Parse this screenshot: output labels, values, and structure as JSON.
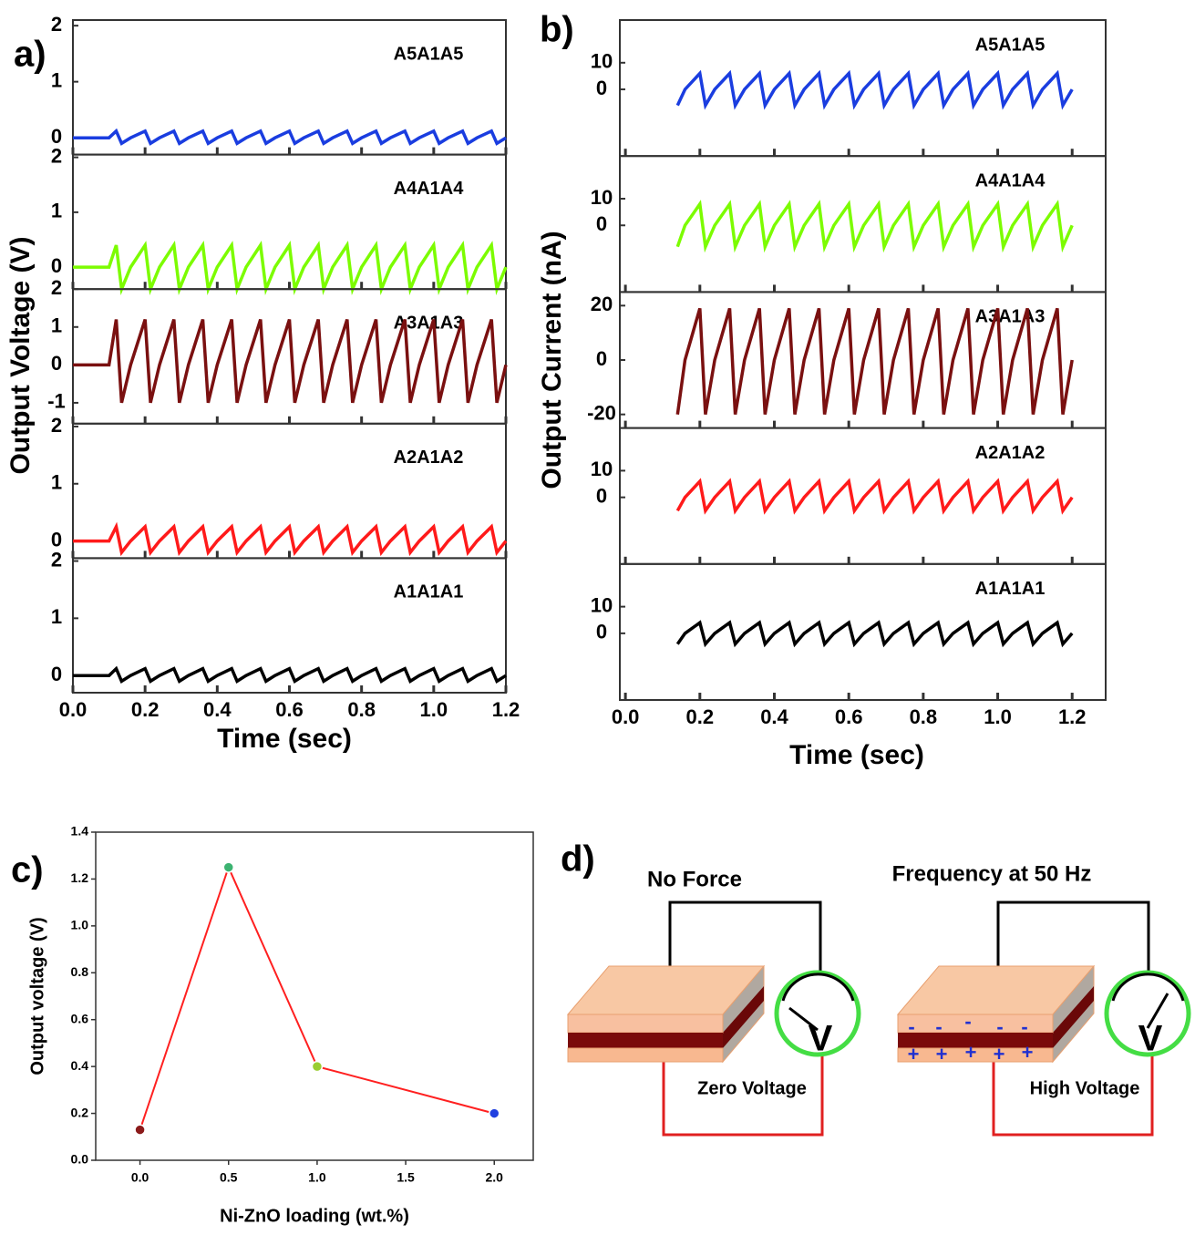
{
  "chart_data": [
    {
      "type": "line",
      "panel_label": "a)",
      "x_label": "Time (sec)",
      "y_label": "Output Voltage (V)",
      "xlim": [
        0,
        1.2
      ],
      "xticks": [
        {
          "value": 0,
          "label": "0.0"
        },
        0.2,
        0.4,
        0.6,
        0.8,
        {
          "value": 1,
          "label": "1.0"
        },
        1.2
      ],
      "x": [
        0,
        0.1,
        0.12,
        0.135,
        0.16,
        0.2,
        0.215,
        0.24,
        0.28,
        0.295,
        0.32,
        0.36,
        0.375,
        0.4,
        0.44,
        0.455,
        0.48,
        0.52,
        0.535,
        0.56,
        0.6,
        0.615,
        0.64,
        0.68,
        0.695,
        0.72,
        0.76,
        0.775,
        0.8,
        0.84,
        0.855,
        0.88,
        0.92,
        0.935,
        0.96,
        1.0,
        1.015,
        1.04,
        1.08,
        1.095,
        1.12,
        1.16,
        1.175,
        1.2
      ],
      "series": [
        {
          "name": "A5A1A5",
          "color": "#1a3de0",
          "ylim": [
            -0.3,
            2.1
          ],
          "yticks": [
            0,
            1,
            2
          ],
          "values": [
            0,
            0,
            0.12,
            -0.1,
            0,
            0.12,
            -0.1,
            0,
            0.12,
            -0.1,
            0,
            0.12,
            -0.1,
            0,
            0.12,
            -0.1,
            0,
            0.12,
            -0.1,
            0,
            0.12,
            -0.1,
            0,
            0.12,
            -0.1,
            0,
            0.12,
            -0.1,
            0,
            0.12,
            -0.1,
            0,
            0.12,
            -0.1,
            0,
            0.12,
            -0.1,
            0,
            0.12,
            -0.1,
            0,
            0.12,
            -0.1,
            0
          ]
        },
        {
          "name": "A4A1A4",
          "color": "#7cfc00",
          "ylim": [
            -0.4,
            2.05
          ],
          "yticks": [
            0,
            1,
            2
          ],
          "values": [
            0,
            0,
            0.4,
            -0.4,
            0,
            0.4,
            -0.4,
            0,
            0.4,
            -0.4,
            0,
            0.4,
            -0.4,
            0,
            0.4,
            -0.4,
            0,
            0.4,
            -0.4,
            0,
            0.4,
            -0.4,
            0,
            0.4,
            -0.4,
            0,
            0.4,
            -0.4,
            0,
            0.4,
            -0.4,
            0,
            0.4,
            -0.4,
            0,
            0.4,
            -0.4,
            0,
            0.4,
            -0.4,
            0,
            0.4,
            -0.4,
            0
          ]
        },
        {
          "name": "A3A1A3",
          "color": "#7a1010",
          "ylim": [
            -1.55,
            2.0
          ],
          "yticks": [
            -1,
            0,
            1,
            2
          ],
          "values": [
            0,
            0,
            1.2,
            -1,
            0,
            1.2,
            -1,
            0,
            1.2,
            -1,
            0,
            1.2,
            -1,
            0,
            1.2,
            -1,
            0,
            1.2,
            -1,
            0,
            1.2,
            -1,
            0,
            1.2,
            -1,
            0,
            1.2,
            -1,
            0,
            1.2,
            -1,
            0,
            1.2,
            -1,
            0,
            1.2,
            -1,
            0,
            1.2,
            -1,
            0,
            1.2,
            -1,
            0
          ]
        },
        {
          "name": "A2A1A2",
          "color": "#ff1a1a",
          "ylim": [
            -0.3,
            2.05
          ],
          "yticks": [
            0,
            1,
            2
          ],
          "values": [
            0,
            0,
            0.25,
            -0.2,
            0,
            0.25,
            -0.2,
            0,
            0.25,
            -0.2,
            0,
            0.25,
            -0.2,
            0,
            0.25,
            -0.2,
            0,
            0.25,
            -0.2,
            0,
            0.25,
            -0.2,
            0,
            0.25,
            -0.2,
            0,
            0.25,
            -0.2,
            0,
            0.25,
            -0.2,
            0,
            0.25,
            -0.2,
            0,
            0.25,
            -0.2,
            0,
            0.25,
            -0.2,
            0,
            0.25,
            -0.2,
            0
          ]
        },
        {
          "name": "A1A1A1",
          "color": "#000000",
          "ylim": [
            -0.3,
            2.05
          ],
          "yticks": [
            0,
            1,
            2
          ],
          "values": [
            0,
            0,
            0.12,
            -0.1,
            0,
            0.12,
            -0.1,
            0,
            0.12,
            -0.1,
            0,
            0.12,
            -0.1,
            0,
            0.12,
            -0.1,
            0,
            0.12,
            -0.1,
            0,
            0.12,
            -0.1,
            0,
            0.12,
            -0.1,
            0,
            0.12,
            -0.1,
            0,
            0.12,
            -0.1,
            0,
            0.12,
            -0.1,
            0,
            0.12,
            -0.1,
            0,
            0.12,
            -0.1,
            0,
            0.12,
            -0.1,
            0
          ]
        }
      ]
    },
    {
      "type": "line",
      "panel_label": "b)",
      "x_label": "Time (sec)",
      "y_label": "Output Current (nA)",
      "xlim": [
        -0.015,
        1.29
      ],
      "xticks": [
        {
          "value": 0,
          "label": "0.0"
        },
        0.2,
        0.4,
        0.6,
        0.8,
        {
          "value": 1,
          "label": "1.0"
        },
        1.2
      ],
      "x": [
        0.14,
        0.16,
        0.2,
        0.215,
        0.24,
        0.28,
        0.295,
        0.32,
        0.36,
        0.375,
        0.4,
        0.44,
        0.455,
        0.48,
        0.52,
        0.535,
        0.56,
        0.6,
        0.615,
        0.64,
        0.68,
        0.695,
        0.72,
        0.76,
        0.775,
        0.8,
        0.84,
        0.855,
        0.88,
        0.92,
        0.935,
        0.96,
        1.0,
        1.015,
        1.04,
        1.08,
        1.095,
        1.12,
        1.16,
        1.175,
        1.2
      ],
      "series": [
        {
          "name": "A5A1A5",
          "color": "#1a3de0",
          "ylim": [
            -25,
            26
          ],
          "yticks": [
            0,
            10
          ],
          "values": [
            -6,
            0,
            6,
            -6,
            0,
            6,
            -6,
            0,
            6,
            -6,
            0,
            6,
            -6,
            0,
            6,
            -6,
            0,
            6,
            -6,
            0,
            6,
            -6,
            0,
            6,
            -6,
            0,
            6,
            -6,
            0,
            6,
            -6,
            0,
            6,
            -6,
            0,
            6,
            -6,
            0,
            6,
            -6,
            0
          ]
        },
        {
          "name": "A4A1A4",
          "color": "#7cfc00",
          "ylim": [
            -25,
            26
          ],
          "yticks": [
            0,
            10
          ],
          "values": [
            -8,
            0,
            8,
            -8,
            0,
            8,
            -8,
            0,
            8,
            -8,
            0,
            8,
            -8,
            0,
            8,
            -8,
            0,
            8,
            -8,
            0,
            8,
            -8,
            0,
            8,
            -8,
            0,
            8,
            -8,
            0,
            8,
            -8,
            0,
            8,
            -8,
            0,
            8,
            -8,
            0,
            8,
            -8,
            0
          ]
        },
        {
          "name": "A3A1A3",
          "color": "#7a1010",
          "ylim": [
            -25,
            25
          ],
          "yticks": [
            -20,
            0,
            20
          ],
          "values": [
            -20,
            0,
            19,
            -20,
            0,
            19,
            -20,
            0,
            19,
            -20,
            0,
            19,
            -20,
            0,
            19,
            -20,
            0,
            19,
            -20,
            0,
            19,
            -20,
            0,
            19,
            -20,
            0,
            19,
            -20,
            0,
            19,
            -20,
            0,
            19,
            -20,
            0,
            19,
            -20,
            0,
            19,
            -20,
            0
          ]
        },
        {
          "name": "A2A1A2",
          "color": "#ff1a1a",
          "ylim": [
            -25,
            26
          ],
          "yticks": [
            0,
            10
          ],
          "values": [
            -5,
            0,
            6,
            -5,
            0,
            6,
            -5,
            0,
            6,
            -5,
            0,
            6,
            -5,
            0,
            6,
            -5,
            0,
            6,
            -5,
            0,
            6,
            -5,
            0,
            6,
            -5,
            0,
            6,
            -5,
            0,
            6,
            -5,
            0,
            6,
            -5,
            0,
            6,
            -5,
            0,
            6,
            -5,
            0
          ]
        },
        {
          "name": "A1A1A1",
          "color": "#000000",
          "ylim": [
            -25,
            26
          ],
          "yticks": [
            0,
            10
          ],
          "values": [
            -4,
            0,
            4,
            -4,
            0,
            4,
            -4,
            0,
            4,
            -4,
            0,
            4,
            -4,
            0,
            4,
            -4,
            0,
            4,
            -4,
            0,
            4,
            -4,
            0,
            4,
            -4,
            0,
            4,
            -4,
            0,
            4,
            -4,
            0,
            4,
            -4,
            0,
            4,
            -4,
            0,
            4,
            -4,
            0
          ]
        }
      ]
    },
    {
      "type": "line",
      "panel_label": "c)",
      "x_label": "Ni-ZnO loading (wt.%)",
      "y_label": "Output voltage (V)",
      "xlim": [
        -0.25,
        2.22
      ],
      "ylim": [
        0,
        1.4
      ],
      "xticks": [
        {
          "value": 0,
          "label": "0.0"
        },
        0.5,
        {
          "value": 1,
          "label": "1.0"
        },
        1.5,
        {
          "value": 2,
          "label": "2.0"
        }
      ],
      "yticks": [
        {
          "value": 0,
          "label": "0.0"
        },
        0.2,
        0.4,
        0.6,
        0.8,
        {
          "value": 1,
          "label": "1.0"
        },
        1.2,
        1.4
      ],
      "x": [
        0,
        0.5,
        1,
        2
      ],
      "values": [
        0.13,
        1.25,
        0.4,
        0.2
      ],
      "color": "#ff2020",
      "marker_colors": [
        "#8b1a1a",
        "#3cb371",
        "#9acd32",
        "#2040e0"
      ]
    }
  ],
  "diagram": {
    "panel_label": "d)",
    "left": {
      "title": "No Force",
      "caption": "Zero Voltage",
      "meter": "V"
    },
    "right": {
      "title": "Frequency at 50 Hz",
      "caption": "High Voltage",
      "meter": "V",
      "negative": "-",
      "positive": "+"
    }
  }
}
